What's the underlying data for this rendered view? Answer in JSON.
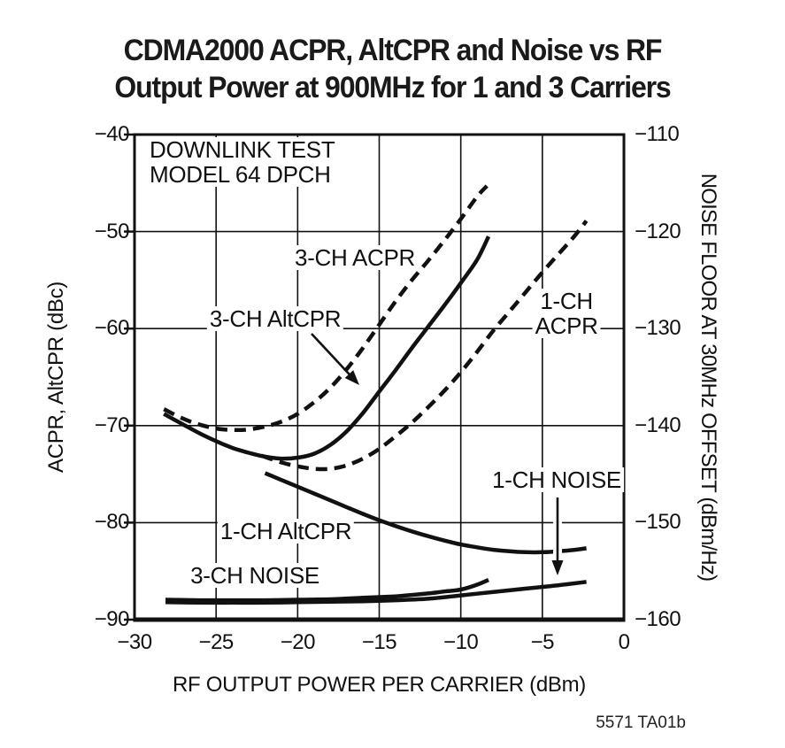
{
  "page": {
    "footnote": "5571 TA01b"
  },
  "colors": {
    "ink": "#111111",
    "background": "#ffffff"
  },
  "chart_data": {
    "type": "line",
    "title_lines": [
      "CDMA2000 ACPR, AltCPR and Noise vs RF",
      "Output Power at 900MHz for 1 and 3 Carriers"
    ],
    "x_axis": {
      "label": "RF OUTPUT POWER PER CARRIER (dBm)",
      "min": -30,
      "max": 0,
      "ticks": [
        -30,
        -25,
        -20,
        -15,
        -10,
        -5,
        0
      ],
      "tick_labels": [
        "−30",
        "−25",
        "−20",
        "−15",
        "−10",
        "−5",
        "0"
      ]
    },
    "y_axis_left": {
      "label": "ACPR, AltCPR (dBc)",
      "min": -90,
      "max": -40,
      "ticks": [
        -40,
        -50,
        -60,
        -70,
        -80,
        -90
      ],
      "tick_labels": [
        "−40",
        "−50",
        "−60",
        "−70",
        "−80",
        "−90"
      ]
    },
    "y_axis_right": {
      "label": "NOISE FLOOR AT 30MHz OFFSET (dBm/Hz)",
      "min": -160,
      "max": -110,
      "ticks": [
        -110,
        -120,
        -130,
        -140,
        -150,
        -160
      ],
      "tick_labels": [
        "−110",
        "−120",
        "−130",
        "−140",
        "−150",
        "−160"
      ]
    },
    "grid": true,
    "legend": "labels drawn inside plot",
    "series": [
      {
        "name": "3-CH ACPR",
        "axis": "left",
        "line": "dashed",
        "points": [
          [
            -28.2,
            -68.3
          ],
          [
            -27,
            -69.3
          ],
          [
            -26,
            -69.9
          ],
          [
            -25,
            -70.3
          ],
          [
            -24,
            -70.45
          ],
          [
            -23,
            -70.4
          ],
          [
            -22,
            -70.1
          ],
          [
            -21,
            -69.6
          ],
          [
            -20,
            -68.8
          ],
          [
            -19,
            -67.6
          ],
          [
            -18,
            -66.1
          ],
          [
            -17,
            -64.2
          ],
          [
            -16,
            -62.0
          ],
          [
            -15,
            -59.6
          ],
          [
            -14,
            -57.2
          ],
          [
            -13,
            -55.0
          ],
          [
            -12,
            -53.0
          ],
          [
            -11,
            -50.9
          ],
          [
            -10,
            -48.7
          ],
          [
            -9,
            -46.4
          ],
          [
            -8.4,
            -45.3
          ]
        ]
      },
      {
        "name": "3-CH AltCPR",
        "axis": "left",
        "line": "solid",
        "points": [
          [
            -28.2,
            -68.8
          ],
          [
            -27,
            -69.9
          ],
          [
            -26,
            -70.8
          ],
          [
            -25,
            -71.6
          ],
          [
            -24,
            -72.3
          ],
          [
            -23,
            -72.8
          ],
          [
            -22,
            -73.2
          ],
          [
            -21,
            -73.4
          ],
          [
            -20,
            -73.3
          ],
          [
            -19,
            -72.9
          ],
          [
            -18,
            -72.0
          ],
          [
            -17,
            -70.6
          ],
          [
            -16,
            -68.7
          ],
          [
            -15,
            -66.5
          ],
          [
            -14,
            -64.3
          ],
          [
            -13,
            -62.0
          ],
          [
            -12,
            -59.8
          ],
          [
            -11,
            -57.6
          ],
          [
            -10,
            -55.3
          ],
          [
            -9,
            -52.9
          ],
          [
            -8.3,
            -50.5
          ]
        ]
      },
      {
        "name": "1-CH ACPR",
        "axis": "left",
        "line": "dashed",
        "points": [
          [
            -22.2,
            -73.1
          ],
          [
            -21,
            -73.8
          ],
          [
            -20,
            -74.2
          ],
          [
            -19,
            -74.45
          ],
          [
            -18,
            -74.45
          ],
          [
            -17,
            -74.1
          ],
          [
            -16,
            -73.4
          ],
          [
            -15,
            -72.4
          ],
          [
            -14,
            -71.1
          ],
          [
            -13,
            -69.7
          ],
          [
            -12,
            -68.1
          ],
          [
            -11,
            -66.4
          ],
          [
            -10,
            -64.5
          ],
          [
            -9,
            -62.4
          ],
          [
            -8,
            -60.2
          ],
          [
            -7,
            -58.2
          ],
          [
            -6,
            -56.2
          ],
          [
            -5,
            -54.2
          ],
          [
            -4,
            -52.3
          ],
          [
            -3,
            -50.4
          ],
          [
            -2.3,
            -48.9
          ]
        ]
      },
      {
        "name": "1-CH AltCPR",
        "axis": "left",
        "line": "solid",
        "points": [
          [
            -22,
            -74.9
          ],
          [
            -21,
            -75.6
          ],
          [
            -20,
            -76.3
          ],
          [
            -19,
            -77.0
          ],
          [
            -18,
            -77.7
          ],
          [
            -17,
            -78.4
          ],
          [
            -16,
            -79.1
          ],
          [
            -15,
            -79.75
          ],
          [
            -14,
            -80.35
          ],
          [
            -13,
            -80.9
          ],
          [
            -12,
            -81.4
          ],
          [
            -11,
            -81.85
          ],
          [
            -10,
            -82.25
          ],
          [
            -9,
            -82.55
          ],
          [
            -8,
            -82.8
          ],
          [
            -7,
            -82.95
          ],
          [
            -6,
            -83.05
          ],
          [
            -5,
            -83.05
          ],
          [
            -4,
            -82.95
          ],
          [
            -3,
            -82.8
          ],
          [
            -2.3,
            -82.65
          ]
        ]
      },
      {
        "name": "3-CH NOISE",
        "axis": "right",
        "line": "solid",
        "points": [
          [
            -28.1,
            -87.95
          ],
          [
            -26,
            -88.0
          ],
          [
            -24,
            -88.0
          ],
          [
            -22,
            -88.0
          ],
          [
            -20,
            -87.95
          ],
          [
            -18,
            -87.9
          ],
          [
            -16,
            -87.75
          ],
          [
            -14,
            -87.6
          ],
          [
            -13,
            -87.45
          ],
          [
            -12,
            -87.3
          ],
          [
            -11,
            -87.1
          ],
          [
            -10,
            -86.9
          ],
          [
            -9,
            -86.4
          ],
          [
            -8.3,
            -85.9
          ]
        ]
      },
      {
        "name": "1-CH NOISE",
        "axis": "right",
        "line": "solid",
        "points": [
          [
            -28.1,
            -88.2
          ],
          [
            -26,
            -88.25
          ],
          [
            -24,
            -88.25
          ],
          [
            -22,
            -88.25
          ],
          [
            -20,
            -88.2
          ],
          [
            -18,
            -88.15
          ],
          [
            -16,
            -88.1
          ],
          [
            -14,
            -88.0
          ],
          [
            -12,
            -87.85
          ],
          [
            -10,
            -87.5
          ],
          [
            -8,
            -87.15
          ],
          [
            -6,
            -86.8
          ],
          [
            -4,
            -86.45
          ],
          [
            -2.3,
            -86.1
          ]
        ]
      }
    ],
    "annotations": [
      {
        "name": "note-downlink-test-model",
        "lines": [
          "DOWNLINK TEST",
          "MODEL 64 DPCH"
        ],
        "x": -29.24,
        "y": -40.27,
        "anchor": "top-left"
      },
      {
        "name": "label-3ch-acpr",
        "lines": [
          "3-CH ACPR"
        ],
        "x": -16.49,
        "y": -52.68,
        "anchor": "center"
      },
      {
        "name": "label-3ch-altcpr",
        "lines": [
          "3-CH AltCPR"
        ],
        "x": -21.37,
        "y": -58.98,
        "anchor": "center"
      },
      {
        "name": "label-1ch-acpr",
        "lines": [
          "1-CH",
          "ACPR"
        ],
        "x": -3.52,
        "y": -58.43,
        "anchor": "center"
      },
      {
        "name": "label-1ch-noise",
        "lines": [
          "1-CH NOISE"
        ],
        "x": -4.12,
        "y": -75.58,
        "anchor": "center"
      },
      {
        "name": "label-1ch-altcpr",
        "lines": [
          "1-CH AltCPR"
        ],
        "x": -20.72,
        "y": -80.88,
        "anchor": "center"
      },
      {
        "name": "label-3ch-noise",
        "lines": [
          "3-CH NOISE"
        ],
        "x": -22.62,
        "y": -85.44,
        "anchor": "center"
      }
    ],
    "arrows": [
      {
        "name": "arrow-3ch-altcpr",
        "from": [
          -19.15,
          -60.53
        ],
        "to": [
          -16.22,
          -65.82
        ],
        "halo": false
      },
      {
        "name": "arrow-1ch-noise",
        "from": [
          -4.07,
          -77.41
        ],
        "to": [
          -4.07,
          -85.44
        ],
        "halo": true
      }
    ]
  }
}
